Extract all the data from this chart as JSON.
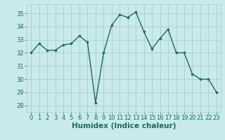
{
  "x": [
    0,
    1,
    2,
    3,
    4,
    5,
    6,
    7,
    8,
    9,
    10,
    11,
    12,
    13,
    14,
    15,
    16,
    17,
    18,
    19,
    20,
    21,
    22,
    23
  ],
  "y": [
    32.0,
    32.7,
    32.2,
    32.2,
    32.6,
    32.7,
    33.3,
    32.8,
    28.2,
    32.0,
    34.1,
    34.9,
    34.7,
    35.1,
    33.6,
    32.3,
    33.1,
    33.8,
    32.0,
    32.0,
    30.4,
    30.0,
    30.0,
    29.0
  ],
  "line_color": "#1a6b5a",
  "marker": "D",
  "markersize": 1.8,
  "linewidth": 1.0,
  "xlabel": "Humidex (Indice chaleur)",
  "xlabel_fontsize": 7.5,
  "xlabel_fontweight": "bold",
  "ylim": [
    27.5,
    35.7
  ],
  "xlim": [
    -0.5,
    23.5
  ],
  "yticks": [
    28,
    29,
    30,
    31,
    32,
    33,
    34,
    35
  ],
  "xticks": [
    0,
    1,
    2,
    3,
    4,
    5,
    6,
    7,
    8,
    9,
    10,
    11,
    12,
    13,
    14,
    15,
    16,
    17,
    18,
    19,
    20,
    21,
    22,
    23
  ],
  "bg_color": "#c8eaea",
  "grid_color": "#b0cccc",
  "tick_fontsize": 6.0
}
